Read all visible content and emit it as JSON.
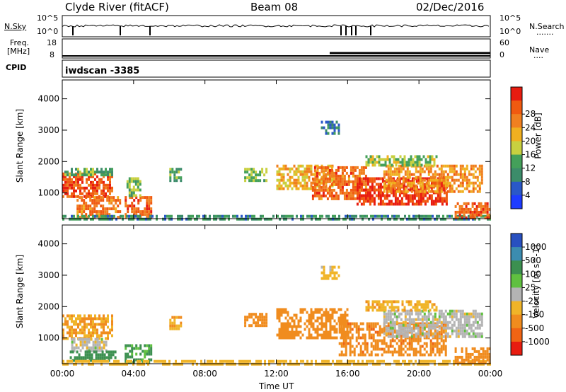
{
  "header": {
    "station": "Clyde River (fitACF)",
    "beam": "Beam 08",
    "date": "02/Dec/2016"
  },
  "status_panels": {
    "nsky_label": "N.Sky",
    "nsearch_label": "N.Search",
    "nsearch_dots": ".......",
    "nsky_ticks": [
      "10^5",
      "10^0"
    ],
    "nsearch_ticks": [
      "10^5",
      "10^0"
    ],
    "freq_label_line1": "Freq.",
    "freq_label_line2": "[MHz]",
    "freq_ticks": [
      "18",
      "8"
    ],
    "nave_label": "Nave",
    "nave_dots": "....",
    "nave_ticks": [
      "60",
      "0"
    ],
    "cpid_label": "CPID",
    "cpid_value": "iwdscan -3385"
  },
  "colors": {
    "power_scale": [
      "#1e3cff",
      "#2a58c8",
      "#3c8c6a",
      "#44a05a",
      "#c8d040",
      "#f0b020",
      "#f08020",
      "#f05a10",
      "#e81c10"
    ],
    "velocity_scale": [
      "#2850c0",
      "#3c8cb0",
      "#3c9050",
      "#60c040",
      "#b4b4b4",
      "#f0b428",
      "#f08c1e",
      "#f06414",
      "#e81c10"
    ]
  },
  "chart_data": [
    {
      "type": "heatmap",
      "name": "power",
      "ylabel": "Slant Range [km]",
      "yticks": [
        1000,
        2000,
        3000,
        4000
      ],
      "ylim": [
        180,
        4600
      ],
      "xlim": [
        0,
        24
      ],
      "colorbar_label": "Power [dB]",
      "colorbar_ticks": [
        "4",
        "8",
        "12",
        "16",
        "20",
        "24",
        "28"
      ],
      "colorbar_range": [
        0,
        32
      ],
      "regions": [
        {
          "t0": 0.0,
          "t1": 2.8,
          "r0": 900,
          "r1": 1650,
          "value": 27
        },
        {
          "t0": 0.0,
          "t1": 2.8,
          "r0": 1600,
          "r1": 1800,
          "value": 12
        },
        {
          "t0": 0.8,
          "t1": 3.2,
          "r0": 250,
          "r1": 900,
          "value": 24
        },
        {
          "t0": 3.5,
          "t1": 5.0,
          "r0": 250,
          "r1": 900,
          "value": 26
        },
        {
          "t0": 3.6,
          "t1": 4.4,
          "r0": 900,
          "r1": 1500,
          "value": 14
        },
        {
          "t0": 6.0,
          "t1": 6.6,
          "r0": 1400,
          "r1": 1800,
          "value": 12
        },
        {
          "t0": 10.2,
          "t1": 11.5,
          "r0": 1400,
          "r1": 1800,
          "value": 14
        },
        {
          "t0": 12.0,
          "t1": 15.2,
          "r0": 1100,
          "r1": 1900,
          "value": 20
        },
        {
          "t0": 14.0,
          "t1": 17.0,
          "r0": 800,
          "r1": 1850,
          "value": 25
        },
        {
          "t0": 16.5,
          "t1": 21.5,
          "r0": 600,
          "r1": 1500,
          "value": 29
        },
        {
          "t0": 18.0,
          "t1": 23.5,
          "r0": 1000,
          "r1": 1900,
          "value": 22
        },
        {
          "t0": 17.0,
          "t1": 21.0,
          "r0": 1850,
          "r1": 2200,
          "value": 15
        },
        {
          "t0": 14.5,
          "t1": 15.5,
          "r0": 2900,
          "r1": 3300,
          "value": 8
        },
        {
          "t0": 0.0,
          "t1": 24.0,
          "r0": 180,
          "r1": 300,
          "value": 10
        },
        {
          "t0": 22.0,
          "t1": 24.0,
          "r0": 200,
          "r1": 700,
          "value": 26
        }
      ]
    },
    {
      "type": "heatmap",
      "name": "velocity",
      "ylabel": "Slant Range [km]",
      "xlabel": "Time UT",
      "yticks": [
        1000,
        2000,
        3000,
        4000
      ],
      "ylim": [
        180,
        4600
      ],
      "xlim": [
        0,
        24
      ],
      "xticks": [
        "00:00",
        "04:00",
        "08:00",
        "12:00",
        "16:00",
        "20:00",
        "00:00"
      ],
      "colorbar_label": "Velocity [m s^-1]",
      "colorbar_ticks": [
        "1000",
        "500",
        "100",
        "25",
        "-25",
        "-100",
        "-500",
        "-1000"
      ],
      "regions": [
        {
          "t0": 0.0,
          "t1": 2.8,
          "r0": 1000,
          "r1": 1750,
          "value": -100
        },
        {
          "t0": 0.5,
          "t1": 2.5,
          "r0": 600,
          "r1": 1000,
          "value": 0
        },
        {
          "t0": 0.3,
          "t1": 3.0,
          "r0": 250,
          "r1": 600,
          "value": 150
        },
        {
          "t0": 3.5,
          "t1": 5.0,
          "r0": 250,
          "r1": 800,
          "value": 120
        },
        {
          "t0": 6.0,
          "t1": 6.6,
          "r0": 1300,
          "r1": 1700,
          "value": -100
        },
        {
          "t0": 10.2,
          "t1": 11.5,
          "r0": 1400,
          "r1": 1800,
          "value": -200
        },
        {
          "t0": 12.0,
          "t1": 16.0,
          "r0": 1000,
          "r1": 1950,
          "value": -300
        },
        {
          "t0": 15.5,
          "t1": 21.5,
          "r0": 500,
          "r1": 1500,
          "value": -400
        },
        {
          "t0": 18.0,
          "t1": 23.5,
          "r0": 1000,
          "r1": 1900,
          "value": 0
        },
        {
          "t0": 17.0,
          "t1": 21.0,
          "r0": 1850,
          "r1": 2200,
          "value": -80
        },
        {
          "t0": 14.5,
          "t1": 15.5,
          "r0": 2900,
          "r1": 3300,
          "value": -50
        },
        {
          "t0": 0.0,
          "t1": 24.0,
          "r0": 180,
          "r1": 300,
          "value": -60
        },
        {
          "t0": 22.0,
          "t1": 24.0,
          "r0": 200,
          "r1": 700,
          "value": -300
        }
      ]
    }
  ]
}
